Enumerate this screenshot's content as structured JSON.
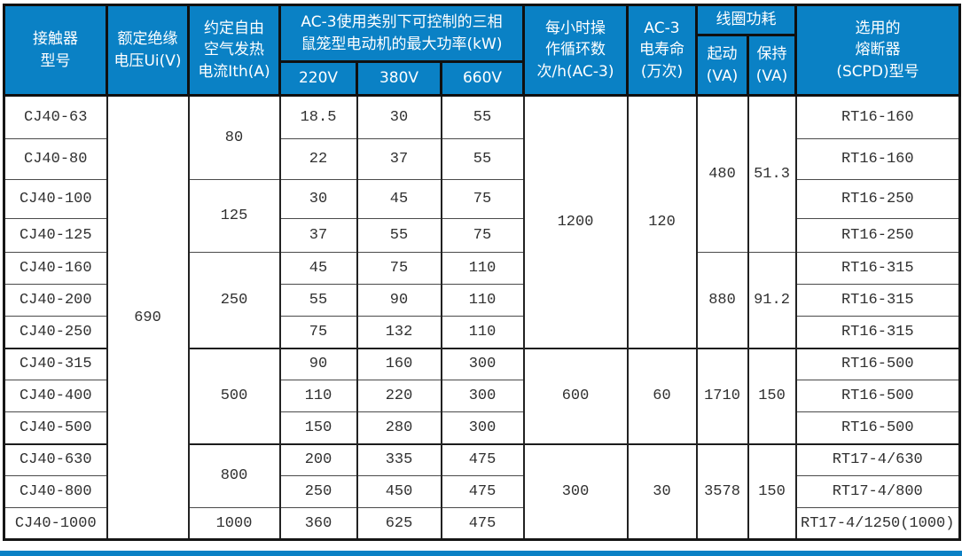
{
  "colors": {
    "header_blue": "#0a81c5",
    "border_dark": "#1c1c1c",
    "body_text": "#303030",
    "header_text": "#ffffff"
  },
  "table": {
    "header": {
      "model": "接触器\n型号",
      "voltage": "额定绝缘\n电压Ui(V)",
      "current": "约定自由\n空气发热\n电流Ith(A)",
      "power_group": "AC-3使用类别下可控制的三相\n鼠笼型电动机的最大功率(kW)",
      "v220": "220V",
      "v380": "380V",
      "v660": "660V",
      "cycles": "每小时操\n作循环数\n次/h(AC-3)",
      "life": "AC-3\n电寿命\n(万次)",
      "coil_group": "线圈功耗",
      "start": "起动\n(VA)",
      "hold": "保持\n(VA)",
      "fuse": "选用的\n熔断器\n(SCPD)型号"
    },
    "rows": [
      {
        "cells": [
          {
            "t": "CJ40-63"
          },
          {
            "t": "690",
            "rs": 13
          },
          {
            "t": "80",
            "rs": 2
          },
          {
            "t": "18.5"
          },
          {
            "t": "30"
          },
          {
            "t": "55"
          },
          {
            "t": "1200",
            "rs": 7
          },
          {
            "t": "120",
            "rs": 7
          },
          {
            "t": "480",
            "rs": 4
          },
          {
            "t": "51.3",
            "rs": 4
          },
          {
            "t": "RT16-160"
          }
        ]
      },
      {
        "cells": [
          {
            "t": "CJ40-80"
          },
          {
            "t": "22"
          },
          {
            "t": "37"
          },
          {
            "t": "55"
          },
          {
            "t": "RT16-160"
          }
        ]
      },
      {
        "cells": [
          {
            "t": "CJ40-100"
          },
          {
            "t": "125",
            "rs": 2
          },
          {
            "t": "30"
          },
          {
            "t": "45"
          },
          {
            "t": "75"
          },
          {
            "t": "RT16-250"
          }
        ]
      },
      {
        "cells": [
          {
            "t": "CJ40-125"
          },
          {
            "t": "37"
          },
          {
            "t": "55"
          },
          {
            "t": "75"
          },
          {
            "t": "RT16-250"
          }
        ]
      },
      {
        "cells": [
          {
            "t": "CJ40-160"
          },
          {
            "t": "250",
            "rs": 3
          },
          {
            "t": "45"
          },
          {
            "t": "75"
          },
          {
            "t": "110"
          },
          {
            "t": "880",
            "rs": 3
          },
          {
            "t": "91.2",
            "rs": 3
          },
          {
            "t": "RT16-315"
          }
        ]
      },
      {
        "cells": [
          {
            "t": "CJ40-200"
          },
          {
            "t": "55"
          },
          {
            "t": "90"
          },
          {
            "t": "110"
          },
          {
            "t": "RT16-315"
          }
        ]
      },
      {
        "cells": [
          {
            "t": "CJ40-250"
          },
          {
            "t": "75"
          },
          {
            "t": "132"
          },
          {
            "t": "110"
          },
          {
            "t": "RT16-315"
          }
        ]
      },
      {
        "group_start": true,
        "cells": [
          {
            "t": "CJ40-315"
          },
          {
            "t": "500",
            "rs": 3
          },
          {
            "t": "90"
          },
          {
            "t": "160"
          },
          {
            "t": "300"
          },
          {
            "t": "600",
            "rs": 3
          },
          {
            "t": "60",
            "rs": 3
          },
          {
            "t": "1710",
            "rs": 3
          },
          {
            "t": "150",
            "rs": 3
          },
          {
            "t": "RT16-500"
          }
        ]
      },
      {
        "cells": [
          {
            "t": "CJ40-400"
          },
          {
            "t": "110"
          },
          {
            "t": "220"
          },
          {
            "t": "300"
          },
          {
            "t": "RT16-500"
          }
        ]
      },
      {
        "cells": [
          {
            "t": "CJ40-500"
          },
          {
            "t": "150"
          },
          {
            "t": "280"
          },
          {
            "t": "300"
          },
          {
            "t": "RT16-500"
          }
        ]
      },
      {
        "group_start": true,
        "cells": [
          {
            "t": "CJ40-630"
          },
          {
            "t": "800",
            "rs": 2
          },
          {
            "t": "200"
          },
          {
            "t": "335"
          },
          {
            "t": "475"
          },
          {
            "t": "300",
            "rs": 3
          },
          {
            "t": "30",
            "rs": 3
          },
          {
            "t": "3578",
            "rs": 3
          },
          {
            "t": "150",
            "rs": 3
          },
          {
            "t": "RT17-4/630"
          }
        ]
      },
      {
        "cells": [
          {
            "t": "CJ40-800"
          },
          {
            "t": "250"
          },
          {
            "t": "450"
          },
          {
            "t": "475"
          },
          {
            "t": "RT17-4/800"
          }
        ]
      },
      {
        "cells": [
          {
            "t": "CJ40-1000"
          },
          {
            "t": "1000"
          },
          {
            "t": "360"
          },
          {
            "t": "625"
          },
          {
            "t": "475"
          },
          {
            "t": "RT17-4/1250(1000)"
          }
        ]
      }
    ]
  }
}
